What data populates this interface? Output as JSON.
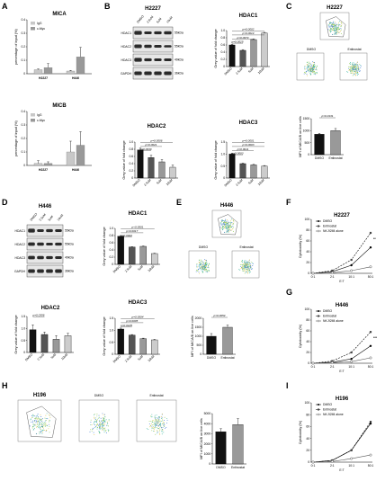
{
  "panels": {
    "A": "A",
    "B": "B",
    "C": "C",
    "D": "D",
    "E": "E",
    "F": "F",
    "G": "G",
    "H": "H",
    "I": "I"
  },
  "colors": {
    "black": "#111111",
    "dark": "#555555",
    "mid": "#999999",
    "light": "#cccccc",
    "igg": "#c8c8c8",
    "cmyc": "#999999"
  },
  "chip": {
    "legend": [
      "IgG",
      "c-Myc"
    ],
    "ylabel": "percentage of input (%)",
    "mica": {
      "title": "MICA",
      "yticks": [
        "0",
        "0.1",
        "0.2",
        "0.3",
        "0.4"
      ],
      "ymax": 0.4,
      "categories": [
        "H2227",
        "H446"
      ],
      "igg": [
        0.03,
        0.02
      ],
      "cmyc": [
        0.045,
        0.125
      ],
      "igg_err": [
        0.005,
        0.005
      ],
      "cmyc_err": [
        0.03,
        0.07
      ]
    },
    "micb": {
      "title": "MICB",
      "yticks": [
        "0",
        "0.1",
        "0.2",
        "0.3",
        "0.4"
      ],
      "ymax": 0.4,
      "categories": [
        "H2227",
        "H446"
      ],
      "igg": [
        0.015,
        0.1
      ],
      "cmyc": [
        0.015,
        0.15
      ],
      "igg_err": [
        0.02,
        0.08
      ],
      "cmyc_err": [
        0.012,
        0.1
      ]
    }
  },
  "wb": {
    "conditions": [
      "DMSO",
      "2.5uM",
      "5uM",
      "10uM"
    ],
    "proteins": [
      "HDAC1",
      "HDAC2",
      "HDAC3",
      "GAPDH"
    ],
    "kda": [
      "55kDa",
      "55kDa",
      "49kDa",
      "36kDa"
    ],
    "B_title": "H2227",
    "D_title": "H446"
  },
  "quant": {
    "ylabel": "Grey value of fold change",
    "xcats": [
      "DMSO",
      "2.5uM",
      "5uM",
      "10uM"
    ],
    "b_hdac1": {
      "title": "HDAC1",
      "ymax": 1.0,
      "yticks": [
        "0",
        "0.2",
        "0.4",
        "0.6",
        "0.8",
        "1.0"
      ],
      "values": [
        0.6,
        0.45,
        0.75,
        0.93
      ],
      "err": [
        0.02,
        0.02,
        0.02,
        0.02
      ],
      "pvals": [
        "p=0.0002",
        "p=0.0014",
        "p=0.0074",
        "p=0.0025"
      ]
    },
    "b_hdac2": {
      "title": "HDAC2",
      "ymax": 1.0,
      "yticks": [
        "0",
        "0.2",
        "0.4",
        "0.6",
        "0.8",
        "1.0"
      ],
      "values": [
        0.78,
        0.57,
        0.45,
        0.3
      ],
      "err": [
        0.05,
        0.06,
        0.06,
        0.06
      ],
      "pvals": [
        "p=0.0006",
        "p=0.0021",
        "p=0.0030"
      ]
    },
    "b_hdac3": {
      "title": "HDAC3",
      "ymax": 1.5,
      "yticks": [
        "0",
        "0.5",
        "1.0",
        "1.5"
      ],
      "values": [
        1.0,
        0.6,
        0.55,
        0.5
      ],
      "err": [
        0.04,
        0.02,
        0.02,
        0.02
      ],
      "pvals": [
        "p=0.0001",
        "p=0.0003",
        "p=0.0011",
        "p=0.0003"
      ]
    },
    "d_hdac1": {
      "title": "HDAC1",
      "ymax": 1.0,
      "yticks": [
        "0",
        "0.2",
        "0.4",
        "0.6",
        "0.8",
        "1.0"
      ],
      "values": [
        0.78,
        0.48,
        0.5,
        0.3
      ],
      "err": [
        0.02,
        0.01,
        0.01,
        0.01
      ],
      "pvals": [
        "p<0.0001",
        "p=0.0017",
        "p=0.0002"
      ]
    },
    "d_hdac2": {
      "title": "HDAC2",
      "ymax": 1.5,
      "yticks": [
        "0",
        "0.5",
        "1.0",
        "1.5"
      ],
      "values": [
        0.95,
        0.75,
        0.55,
        0.7
      ],
      "err": [
        0.2,
        0.1,
        0.15,
        0.1
      ],
      "pvals": [
        "p=0.0356"
      ]
    },
    "d_hdac3": {
      "title": "HDAC3",
      "ymax": 1.5,
      "yticks": [
        "0",
        "0.5",
        "1.0",
        "1.5"
      ],
      "values": [
        1.05,
        0.8,
        0.65,
        0.6
      ],
      "err": [
        0.04,
        0.02,
        0.02,
        0.02
      ],
      "pvals": [
        "p=0.0004",
        "p=0.0005",
        "p=0.0105"
      ]
    }
  },
  "flow": {
    "C_title": "H2227",
    "E_title": "H446",
    "H_title": "H196",
    "dmso": "DMSO",
    "entinostat": "Entinostat",
    "ylabel": "MFI of MICA/B on live cells",
    "c_bars": {
      "values": [
        850,
        1000
      ],
      "err": [
        40,
        90
      ],
      "ymax": 1500,
      "yticks": [
        "0",
        "500",
        "1000",
        "1500"
      ],
      "pval": "p=0.0131"
    },
    "e_bars": {
      "values": [
        1000,
        1500
      ],
      "err": [
        150,
        120
      ],
      "ymax": 2000,
      "yticks": [
        "0",
        "500",
        "1000",
        "1500",
        "2000"
      ],
      "pval": "p=0.0054"
    },
    "h_bars": {
      "values": [
        3200,
        3900
      ],
      "err": [
        300,
        600
      ],
      "ymax": 5000,
      "yticks": [
        "0",
        "1000",
        "2000",
        "3000",
        "4000",
        "5000"
      ]
    }
  },
  "cyto": {
    "legend": [
      "DMSO",
      "Entinostat",
      "NK-92MI alone"
    ],
    "ylabel": "Cytotoxicity (%)",
    "xlabel": "E:T",
    "xcats": [
      "0:1",
      "2:1",
      "10:1",
      "50:1"
    ],
    "f": {
      "title": "H2227",
      "ymax": 100,
      "yticks": [
        "0",
        "20",
        "40",
        "60",
        "80",
        "100"
      ],
      "dmso": [
        0,
        3,
        15,
        48
      ],
      "ent": [
        0,
        5,
        25,
        75
      ],
      "nk": [
        0,
        1,
        5,
        12
      ],
      "sig": "**"
    },
    "g": {
      "title": "H446",
      "ymax": 100,
      "yticks": [
        "0",
        "20",
        "40",
        "60",
        "80",
        "100"
      ],
      "dmso": [
        0,
        2,
        8,
        32
      ],
      "ent": [
        0,
        4,
        20,
        58
      ],
      "nk": [
        0,
        1,
        3,
        10
      ],
      "sig": "***"
    },
    "i": {
      "title": "H196",
      "ymax": 100,
      "yticks": [
        "0",
        "20",
        "40",
        "60",
        "80",
        "100"
      ],
      "dmso": [
        0,
        3,
        20,
        65
      ],
      "ent": [
        0,
        3,
        20,
        68
      ],
      "nk": [
        0,
        1,
        6,
        12
      ]
    }
  }
}
